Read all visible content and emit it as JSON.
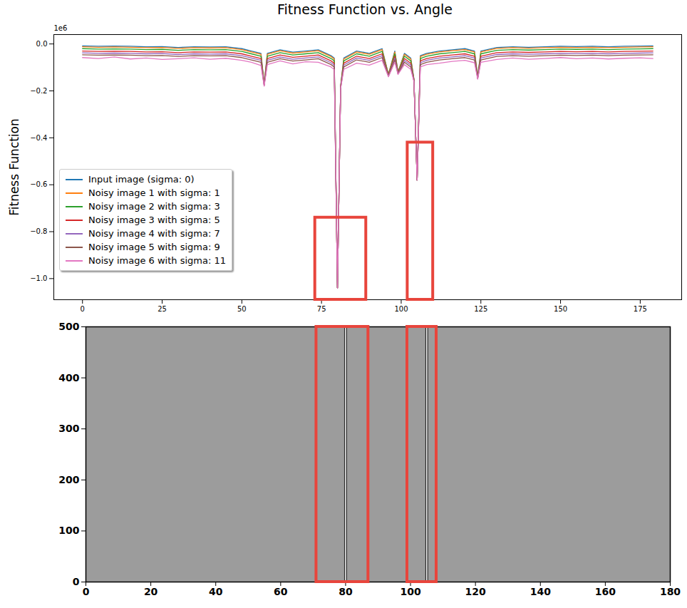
{
  "chart_data": [
    {
      "type": "line",
      "title": "Fitness Function vs. Angle",
      "y_label": "Fitness Function",
      "y_offset_text": "1e6",
      "x": [
        0,
        5,
        10,
        15,
        20,
        25,
        30,
        35,
        40,
        45,
        50,
        53,
        56,
        57,
        58,
        62,
        66,
        70,
        74,
        78,
        79,
        80,
        81,
        82,
        86,
        90,
        94,
        96,
        98,
        99,
        101,
        103,
        104,
        105,
        106,
        108,
        112,
        116,
        120,
        123,
        124,
        125,
        130,
        135,
        140,
        145,
        150,
        155,
        160,
        165,
        170,
        175,
        179
      ],
      "series": [
        {
          "name": "Input image (sigma: 0)",
          "color": "#1f77b4",
          "values": [
            -0.008,
            -0.01,
            -0.009,
            -0.01,
            -0.012,
            -0.011,
            -0.015,
            -0.012,
            -0.013,
            -0.012,
            -0.02,
            -0.03,
            -0.04,
            -0.17,
            -0.04,
            -0.025,
            -0.035,
            -0.03,
            -0.025,
            -0.05,
            -0.06,
            -1.04,
            -0.18,
            -0.06,
            -0.03,
            -0.04,
            -0.02,
            -0.13,
            -0.03,
            -0.12,
            -0.04,
            -0.06,
            -0.15,
            -0.58,
            -0.05,
            -0.04,
            -0.03,
            -0.025,
            -0.02,
            -0.03,
            -0.14,
            -0.03,
            -0.015,
            -0.012,
            -0.014,
            -0.012,
            -0.01,
            -0.011,
            -0.01,
            -0.012,
            -0.01,
            -0.009,
            -0.008
          ]
        },
        {
          "name": "Noisy image 1 with sigma: 1",
          "color": "#ff7f0e",
          "values": [
            -0.012,
            -0.014,
            -0.013,
            -0.014,
            -0.016,
            -0.015,
            -0.019,
            -0.016,
            -0.017,
            -0.016,
            -0.024,
            -0.034,
            -0.044,
            -0.17,
            -0.044,
            -0.029,
            -0.039,
            -0.034,
            -0.029,
            -0.054,
            -0.064,
            -1.04,
            -0.18,
            -0.064,
            -0.034,
            -0.044,
            -0.024,
            -0.13,
            -0.034,
            -0.12,
            -0.044,
            -0.064,
            -0.15,
            -0.58,
            -0.054,
            -0.044,
            -0.034,
            -0.029,
            -0.024,
            -0.034,
            -0.14,
            -0.034,
            -0.019,
            -0.016,
            -0.018,
            -0.016,
            -0.014,
            -0.015,
            -0.014,
            -0.016,
            -0.014,
            -0.013,
            -0.012
          ]
        },
        {
          "name": "Noisy image 2 with sigma: 3",
          "color": "#2ca02c",
          "values": [
            -0.02,
            -0.022,
            -0.021,
            -0.022,
            -0.024,
            -0.023,
            -0.027,
            -0.024,
            -0.025,
            -0.024,
            -0.032,
            -0.042,
            -0.052,
            -0.172,
            -0.052,
            -0.037,
            -0.047,
            -0.042,
            -0.037,
            -0.062,
            -0.072,
            -1.04,
            -0.182,
            -0.072,
            -0.042,
            -0.052,
            -0.032,
            -0.132,
            -0.042,
            -0.122,
            -0.052,
            -0.072,
            -0.152,
            -0.58,
            -0.062,
            -0.052,
            -0.042,
            -0.037,
            -0.032,
            -0.042,
            -0.142,
            -0.042,
            -0.027,
            -0.024,
            -0.026,
            -0.024,
            -0.022,
            -0.023,
            -0.022,
            -0.024,
            -0.022,
            -0.021,
            -0.02
          ]
        },
        {
          "name": "Noisy image 3 with sigma: 5",
          "color": "#d62728",
          "values": [
            -0.03,
            -0.032,
            -0.031,
            -0.032,
            -0.034,
            -0.033,
            -0.037,
            -0.034,
            -0.035,
            -0.034,
            -0.042,
            -0.052,
            -0.062,
            -0.174,
            -0.062,
            -0.047,
            -0.057,
            -0.052,
            -0.047,
            -0.072,
            -0.082,
            -1.04,
            -0.184,
            -0.082,
            -0.052,
            -0.062,
            -0.042,
            -0.134,
            -0.052,
            -0.124,
            -0.062,
            -0.082,
            -0.154,
            -0.58,
            -0.072,
            -0.062,
            -0.052,
            -0.047,
            -0.042,
            -0.052,
            -0.144,
            -0.052,
            -0.037,
            -0.034,
            -0.036,
            -0.034,
            -0.032,
            -0.033,
            -0.032,
            -0.034,
            -0.032,
            -0.031,
            -0.03
          ]
        },
        {
          "name": "Noisy image 4 with sigma: 7",
          "color": "#9467bd",
          "values": [
            -0.038,
            -0.04,
            -0.039,
            -0.04,
            -0.042,
            -0.041,
            -0.045,
            -0.042,
            -0.043,
            -0.042,
            -0.05,
            -0.06,
            -0.07,
            -0.176,
            -0.07,
            -0.055,
            -0.065,
            -0.06,
            -0.055,
            -0.08,
            -0.09,
            -1.04,
            -0.186,
            -0.09,
            -0.06,
            -0.07,
            -0.05,
            -0.136,
            -0.06,
            -0.126,
            -0.07,
            -0.09,
            -0.156,
            -0.58,
            -0.08,
            -0.07,
            -0.06,
            -0.055,
            -0.05,
            -0.06,
            -0.146,
            -0.06,
            -0.045,
            -0.042,
            -0.044,
            -0.042,
            -0.04,
            -0.041,
            -0.04,
            -0.042,
            -0.04,
            -0.039,
            -0.038
          ]
        },
        {
          "name": "Noisy image 5 with sigma: 9",
          "color": "#8c564b",
          "values": [
            -0.046,
            -0.048,
            -0.047,
            -0.048,
            -0.05,
            -0.049,
            -0.053,
            -0.05,
            -0.051,
            -0.05,
            -0.058,
            -0.068,
            -0.078,
            -0.178,
            -0.078,
            -0.063,
            -0.073,
            -0.068,
            -0.063,
            -0.088,
            -0.098,
            -1.04,
            -0.188,
            -0.098,
            -0.068,
            -0.078,
            -0.058,
            -0.138,
            -0.068,
            -0.128,
            -0.078,
            -0.098,
            -0.158,
            -0.58,
            -0.088,
            -0.078,
            -0.068,
            -0.063,
            -0.058,
            -0.068,
            -0.148,
            -0.068,
            -0.053,
            -0.05,
            -0.052,
            -0.05,
            -0.048,
            -0.049,
            -0.048,
            -0.05,
            -0.048,
            -0.047,
            -0.046
          ]
        },
        {
          "name": "Noisy image 6 with sigma: 11",
          "color": "#e377c2",
          "values": [
            -0.058,
            -0.062,
            -0.055,
            -0.064,
            -0.06,
            -0.066,
            -0.063,
            -0.059,
            -0.065,
            -0.061,
            -0.07,
            -0.078,
            -0.092,
            -0.18,
            -0.088,
            -0.072,
            -0.085,
            -0.076,
            -0.078,
            -0.098,
            -0.11,
            -1.04,
            -0.19,
            -0.108,
            -0.082,
            -0.09,
            -0.07,
            -0.14,
            -0.078,
            -0.13,
            -0.088,
            -0.108,
            -0.16,
            -0.58,
            -0.098,
            -0.088,
            -0.082,
            -0.074,
            -0.07,
            -0.08,
            -0.15,
            -0.078,
            -0.066,
            -0.06,
            -0.065,
            -0.062,
            -0.058,
            -0.063,
            -0.06,
            -0.064,
            -0.061,
            -0.059,
            -0.062
          ]
        }
      ],
      "xlim": [
        -9,
        188
      ],
      "xticks": [
        0,
        25,
        50,
        75,
        100,
        125,
        150,
        175
      ],
      "ylim": [
        -1.09,
        0.04
      ],
      "yticks": [
        {
          "value": -1.0,
          "label": "−1.0"
        },
        {
          "value": -0.8,
          "label": "−0.8"
        },
        {
          "value": -0.6,
          "label": "−0.6"
        },
        {
          "value": -0.4,
          "label": "−0.4"
        },
        {
          "value": -0.2,
          "label": "−0.2"
        },
        {
          "value": 0,
          "label": "0.0"
        }
      ],
      "legend": "lower left",
      "boxes": [
        {
          "x0": 73,
          "x1": 89,
          "y0": -0.74,
          "y1": -1.09,
          "color": "#e8453c"
        },
        {
          "x0": 102,
          "x1": 110,
          "y0": -0.42,
          "y1": -1.09,
          "color": "#e8453c"
        }
      ]
    },
    {
      "type": "image",
      "xlim": [
        0,
        180
      ],
      "xticks": [
        0,
        20,
        40,
        60,
        80,
        100,
        120,
        140,
        160,
        180
      ],
      "ylim": [
        0,
        500
      ],
      "yticks": [
        0,
        100,
        200,
        300,
        400,
        500
      ],
      "bright_columns": [
        80,
        105
      ],
      "boxes": [
        {
          "x0": 71,
          "x1": 87,
          "y0": 0,
          "y1": 500,
          "color": "#e8453c"
        },
        {
          "x0": 99,
          "x1": 108,
          "y0": 0,
          "y1": 500,
          "color": "#e8453c"
        }
      ]
    }
  ]
}
